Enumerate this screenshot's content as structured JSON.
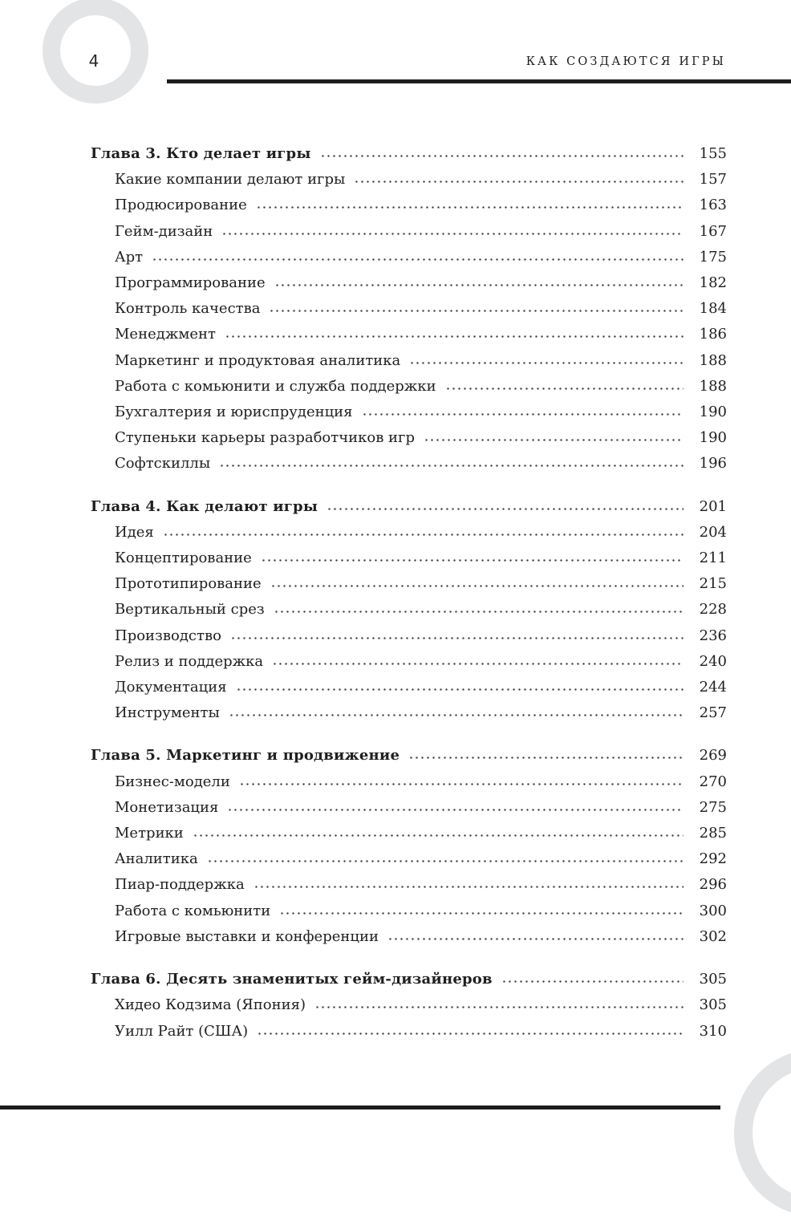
{
  "page": {
    "number": "4",
    "running_title": "КАК СОЗДАЮТСЯ ИГРЫ"
  },
  "toc": {
    "sections": [
      {
        "title": "Глава 3. Кто делает игры",
        "page": "155",
        "entries": [
          {
            "title": "Какие компании делают игры",
            "page": "157"
          },
          {
            "title": "Продюсирование",
            "page": "163"
          },
          {
            "title": "Гейм-дизайн",
            "page": "167"
          },
          {
            "title": "Арт",
            "page": "175"
          },
          {
            "title": "Программирование",
            "page": "182"
          },
          {
            "title": "Контроль качества",
            "page": "184"
          },
          {
            "title": "Менеджмент",
            "page": "186"
          },
          {
            "title": "Маркетинг и продуктовая аналитика",
            "page": "188"
          },
          {
            "title": "Работа с комьюнити и служба поддержки",
            "page": "188"
          },
          {
            "title": "Бухгалтерия и юриспруденция",
            "page": "190"
          },
          {
            "title": "Ступеньки карьеры разработчиков игр",
            "page": "190"
          },
          {
            "title": "Софтскиллы",
            "page": "196"
          }
        ]
      },
      {
        "title": "Глава 4. Как делают игры",
        "page": "201",
        "entries": [
          {
            "title": "Идея",
            "page": "204"
          },
          {
            "title": "Концептирование",
            "page": "211"
          },
          {
            "title": "Прототипирование",
            "page": "215"
          },
          {
            "title": "Вертикальный срез",
            "page": "228"
          },
          {
            "title": "Производство",
            "page": "236"
          },
          {
            "title": "Релиз и поддержка",
            "page": "240"
          },
          {
            "title": "Документация",
            "page": "244"
          },
          {
            "title": "Инструменты",
            "page": "257"
          }
        ]
      },
      {
        "title": "Глава 5. Маркетинг и продвижение",
        "page": "269",
        "entries": [
          {
            "title": "Бизнес-модели",
            "page": "270"
          },
          {
            "title": "Монетизация",
            "page": "275"
          },
          {
            "title": "Метрики",
            "page": "285"
          },
          {
            "title": "Аналитика",
            "page": "292"
          },
          {
            "title": "Пиар-поддержка",
            "page": "296"
          },
          {
            "title": "Работа с комьюнити",
            "page": "300"
          },
          {
            "title": "Игровые выставки и конференции",
            "page": "302"
          }
        ]
      },
      {
        "title": "Глава 6. Десять знаменитых гейм-дизайнеров",
        "page": "305",
        "entries": [
          {
            "title": "Хидео Кодзима (Япония)",
            "page": "305"
          },
          {
            "title": "Уилл Райт (США)",
            "page": "310"
          }
        ]
      }
    ]
  }
}
